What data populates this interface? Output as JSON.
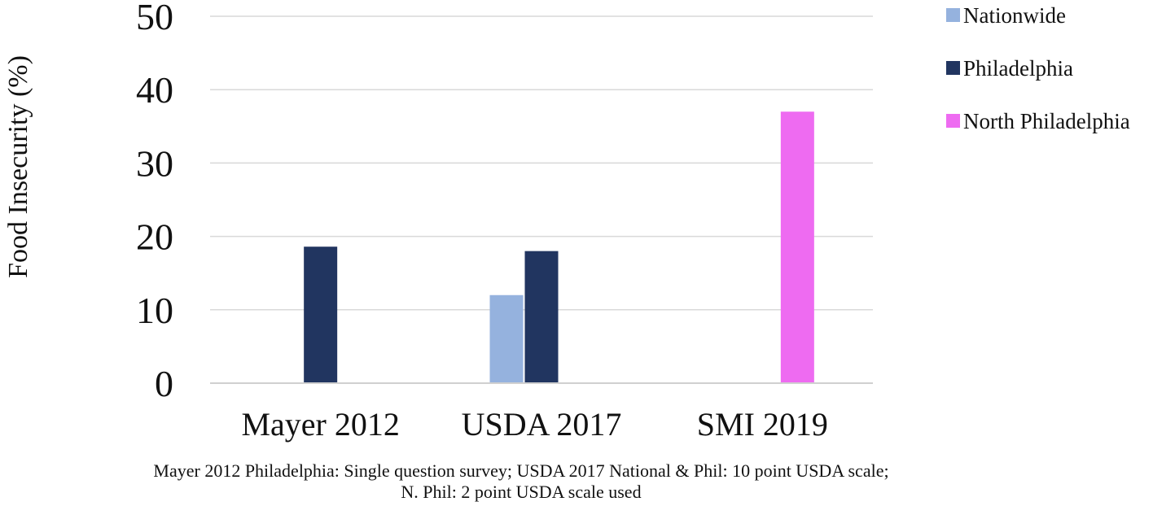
{
  "chart_data": {
    "type": "bar",
    "title": "",
    "xlabel": "",
    "ylabel": "Food Insecurity (%)",
    "ylim": [
      0,
      50
    ],
    "yticks": [
      0,
      10,
      20,
      30,
      40,
      50
    ],
    "grid": true,
    "legend_position": "right",
    "categories": [
      "Mayer 2012",
      "USDA 2017",
      "SMI 2019"
    ],
    "series": [
      {
        "name": "Nationwide",
        "color": "#95B2DE",
        "values": [
          null,
          12,
          null
        ]
      },
      {
        "name": "Philadelphia",
        "color": "#213560",
        "values": [
          18.6,
          18,
          null
        ]
      },
      {
        "name": "North Philadelphia",
        "color": "#EE6BF1",
        "values": [
          null,
          null,
          37
        ]
      }
    ],
    "footnote": [
      "Mayer 2012 Philadelphia: Single question survey; USDA 2017 National & Phil: 10 point USDA scale;",
      "N. Phil: 2 point USDA scale used"
    ]
  }
}
